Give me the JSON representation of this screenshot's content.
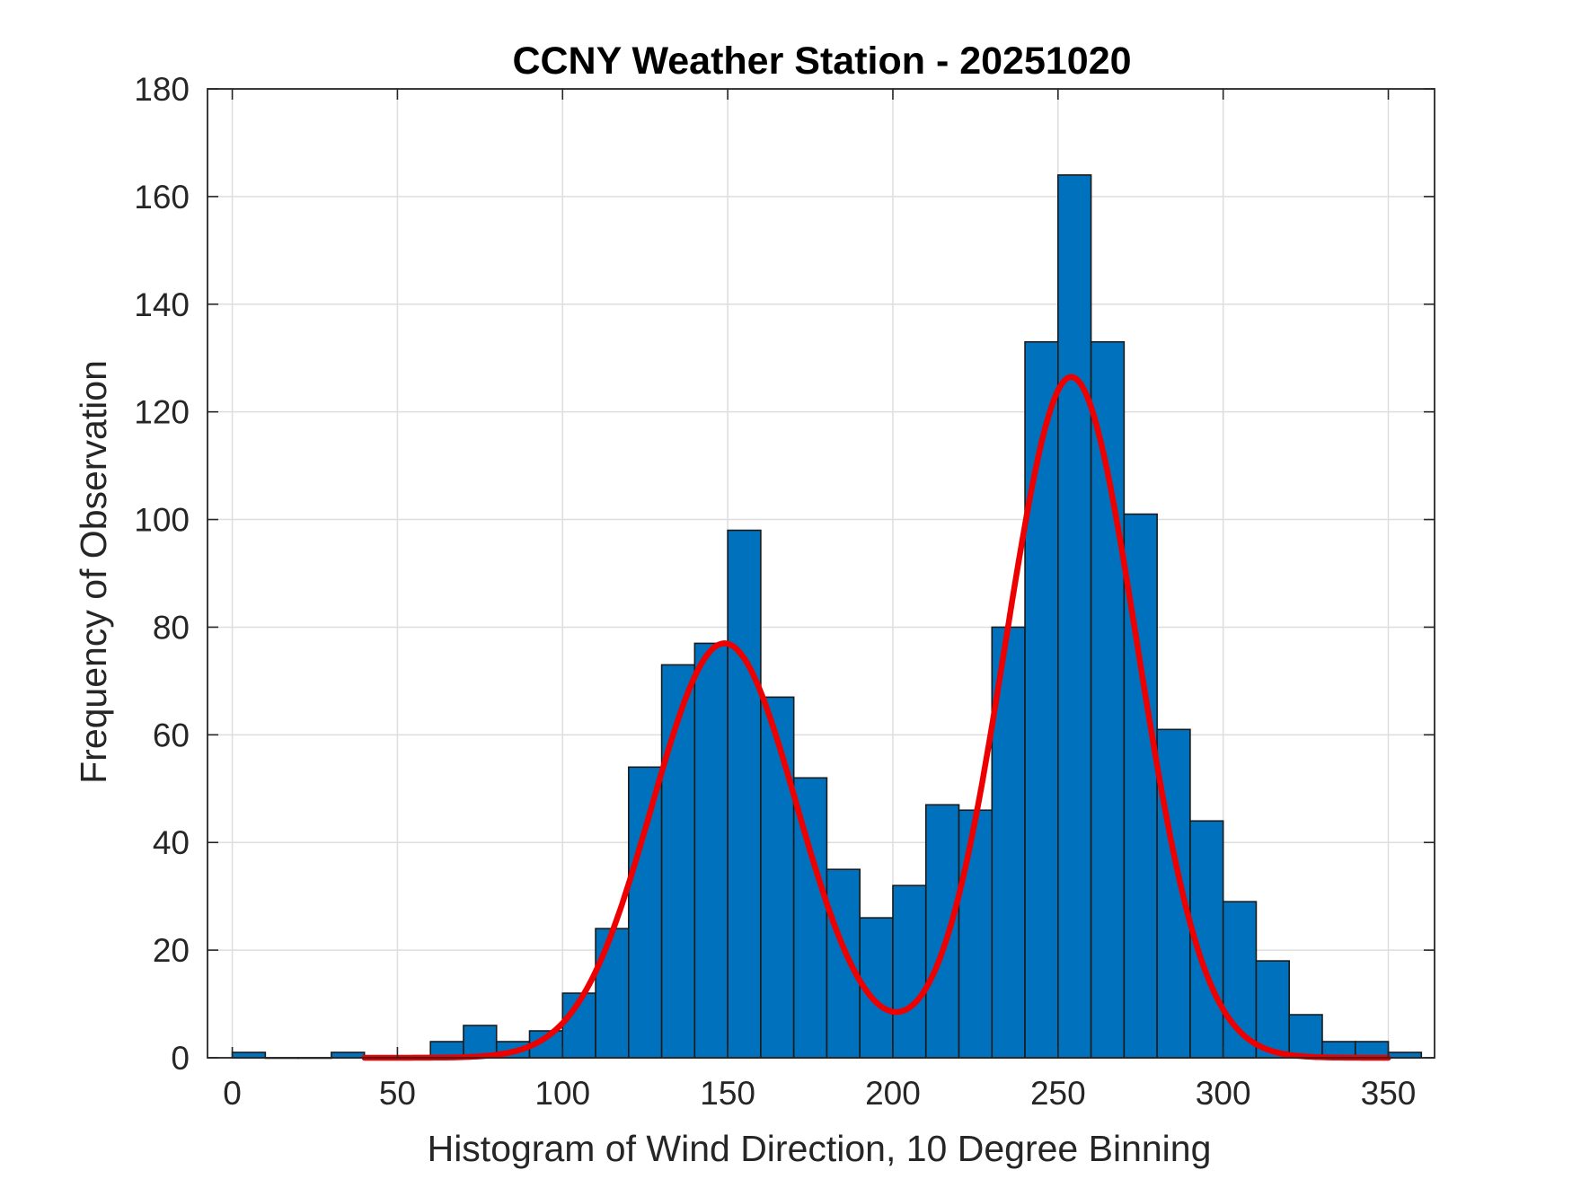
{
  "chart_data": {
    "type": "bar",
    "title": "CCNY Weather Station - 20251020",
    "xlabel": "Histogram of Wind Direction, 10 Degree Binning",
    "ylabel": "Frequency of Observation",
    "xlim": [
      -7.5,
      364
    ],
    "ylim": [
      0,
      180
    ],
    "grid": true,
    "x_ticks": [
      0,
      50,
      100,
      150,
      200,
      250,
      300,
      350
    ],
    "y_ticks": [
      0,
      20,
      40,
      60,
      80,
      100,
      120,
      140,
      160,
      180
    ],
    "bin_width": 10,
    "bin_edges_start": [
      0,
      10,
      20,
      30,
      40,
      50,
      60,
      70,
      80,
      90,
      100,
      110,
      120,
      130,
      140,
      150,
      160,
      170,
      180,
      190,
      200,
      210,
      220,
      230,
      240,
      250,
      260,
      270,
      280,
      290,
      300,
      310,
      320,
      330,
      340,
      350
    ],
    "values": [
      1,
      0,
      0,
      1,
      0,
      0,
      3,
      6,
      3,
      5,
      12,
      24,
      54,
      73,
      77,
      98,
      67,
      52,
      35,
      26,
      32,
      47,
      46,
      80,
      133,
      164,
      133,
      101,
      61,
      44,
      29,
      18,
      8,
      3,
      3,
      1
    ],
    "fit_curve": {
      "type": "line",
      "description": "two-component gaussian mixture fit",
      "x_range": [
        40,
        350
      ],
      "components": [
        {
          "mean": 149,
          "sigma": 22,
          "amplitude": 77
        },
        {
          "mean": 254,
          "sigma": 20,
          "amplitude": 126.5
        }
      ]
    },
    "colors": {
      "bar_fill": "#0072BD",
      "curve": "#EE0000"
    }
  }
}
